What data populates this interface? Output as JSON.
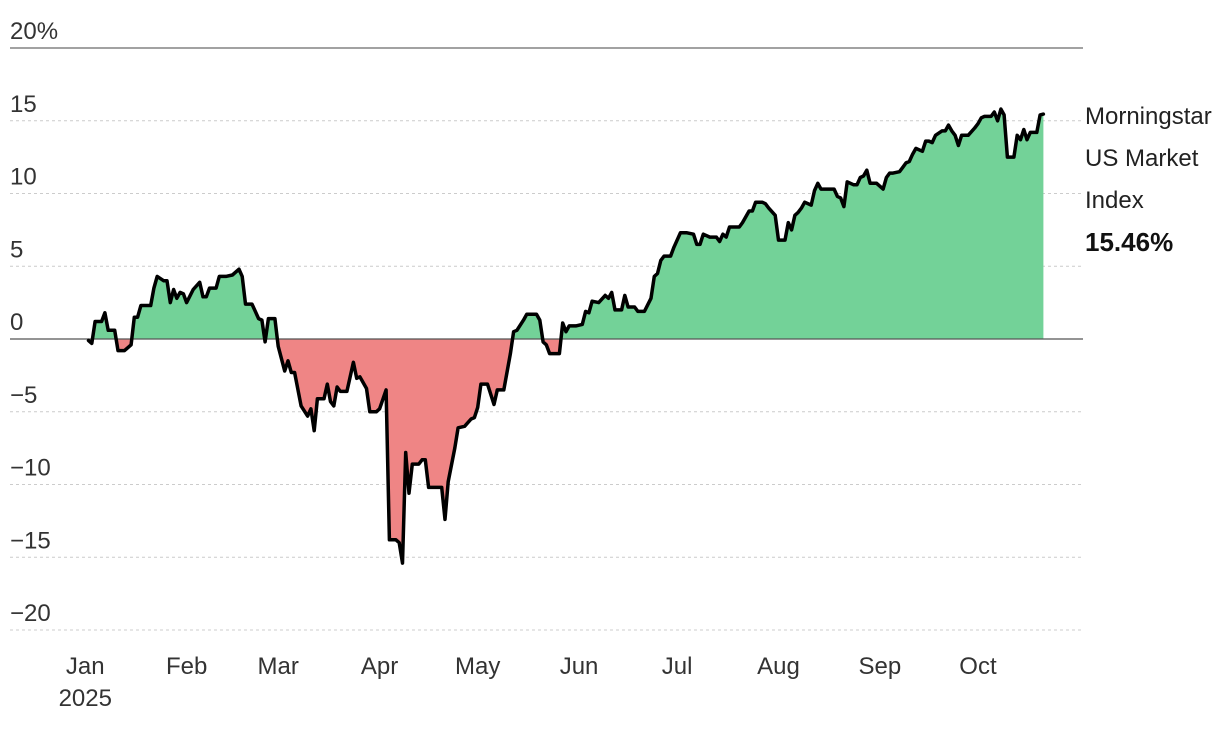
{
  "chart_data": {
    "type": "area",
    "title": "",
    "xlabel": "",
    "ylabel": "",
    "ylim": [
      -20,
      20
    ],
    "y_ticks": [
      {
        "value": 20,
        "label": "20%"
      },
      {
        "value": 15,
        "label": "15"
      },
      {
        "value": 10,
        "label": "10"
      },
      {
        "value": 5,
        "label": "5"
      },
      {
        "value": 0,
        "label": "0"
      },
      {
        "value": -5,
        "label": "−5"
      },
      {
        "value": -10,
        "label": "−10"
      },
      {
        "value": -15,
        "label": "−15"
      },
      {
        "value": -20,
        "label": "−20"
      }
    ],
    "x_ticks": [
      {
        "date": "2025-01-01",
        "label": "Jan",
        "sublabel": "2025"
      },
      {
        "date": "2025-02-01",
        "label": "Feb"
      },
      {
        "date": "2025-03-01",
        "label": "Mar"
      },
      {
        "date": "2025-04-01",
        "label": "Apr"
      },
      {
        "date": "2025-05-01",
        "label": "May"
      },
      {
        "date": "2025-06-01",
        "label": "Jun"
      },
      {
        "date": "2025-07-01",
        "label": "Jul"
      },
      {
        "date": "2025-08-01",
        "label": "Aug"
      },
      {
        "date": "2025-09-01",
        "label": "Sep"
      },
      {
        "date": "2025-10-01",
        "label": "Oct"
      }
    ],
    "xlim": [
      "2024-12-31",
      "2025-10-27"
    ],
    "grid": true,
    "colors": {
      "positive": "#73d298",
      "negative": "#ef8585",
      "line": "#000000",
      "zero": "#555555",
      "grid": "#cccccc"
    },
    "series": [
      {
        "name": "Morningstar US Market Index",
        "label_lines": [
          "Morningstar",
          "US Market",
          "Index"
        ],
        "last_value_label": "15.46%",
        "points": [
          [
            "2025-01-02",
            -0.1
          ],
          [
            "2025-01-03",
            -0.3
          ],
          [
            "2025-01-04",
            1.2
          ],
          [
            "2025-01-06",
            1.2
          ],
          [
            "2025-01-07",
            1.8
          ],
          [
            "2025-01-08",
            0.6
          ],
          [
            "2025-01-10",
            0.6
          ],
          [
            "2025-01-11",
            -0.8
          ],
          [
            "2025-01-13",
            -0.8
          ],
          [
            "2025-01-15",
            -0.4
          ],
          [
            "2025-01-16",
            1.5
          ],
          [
            "2025-01-17",
            1.5
          ],
          [
            "2025-01-18",
            2.3
          ],
          [
            "2025-01-20",
            2.3
          ],
          [
            "2025-01-21",
            2.3
          ],
          [
            "2025-01-22",
            3.5
          ],
          [
            "2025-01-23",
            4.3
          ],
          [
            "2025-01-25",
            4.0
          ],
          [
            "2025-01-26",
            4.0
          ],
          [
            "2025-01-27",
            2.5
          ],
          [
            "2025-01-28",
            3.4
          ],
          [
            "2025-01-29",
            2.8
          ],
          [
            "2025-01-30",
            3.2
          ],
          [
            "2025-01-31",
            3.1
          ],
          [
            "2025-02-01",
            2.5
          ],
          [
            "2025-02-03",
            3.4
          ],
          [
            "2025-02-05",
            3.9
          ],
          [
            "2025-02-06",
            2.9
          ],
          [
            "2025-02-07",
            2.9
          ],
          [
            "2025-02-08",
            3.5
          ],
          [
            "2025-02-10",
            3.5
          ],
          [
            "2025-02-11",
            4.3
          ],
          [
            "2025-02-13",
            4.3
          ],
          [
            "2025-02-15",
            4.4
          ],
          [
            "2025-02-17",
            4.8
          ],
          [
            "2025-02-18",
            4.3
          ],
          [
            "2025-02-19",
            2.4
          ],
          [
            "2025-02-21",
            2.4
          ],
          [
            "2025-02-23",
            1.4
          ],
          [
            "2025-02-24",
            1.3
          ],
          [
            "2025-02-25",
            -0.2
          ],
          [
            "2025-02-26",
            1.4
          ],
          [
            "2025-02-28",
            1.4
          ],
          [
            "2025-03-01",
            -0.5
          ],
          [
            "2025-03-03",
            -2.2
          ],
          [
            "2025-03-04",
            -1.5
          ],
          [
            "2025-03-05",
            -2.3
          ],
          [
            "2025-03-06",
            -2.3
          ],
          [
            "2025-03-08",
            -4.6
          ],
          [
            "2025-03-10",
            -5.3
          ],
          [
            "2025-03-11",
            -4.8
          ],
          [
            "2025-03-12",
            -6.3
          ],
          [
            "2025-03-13",
            -4.1
          ],
          [
            "2025-03-15",
            -4.1
          ],
          [
            "2025-03-16",
            -3.1
          ],
          [
            "2025-03-17",
            -4.3
          ],
          [
            "2025-03-18",
            -4.6
          ],
          [
            "2025-03-19",
            -3.3
          ],
          [
            "2025-03-20",
            -3.6
          ],
          [
            "2025-03-22",
            -3.6
          ],
          [
            "2025-03-24",
            -1.6
          ],
          [
            "2025-03-25",
            -2.7
          ],
          [
            "2025-03-26",
            -2.6
          ],
          [
            "2025-03-28",
            -3.4
          ],
          [
            "2025-03-29",
            -5.0
          ],
          [
            "2025-03-31",
            -5.0
          ],
          [
            "2025-04-01",
            -4.8
          ],
          [
            "2025-04-03",
            -3.5
          ],
          [
            "2025-04-04",
            -13.8
          ],
          [
            "2025-04-06",
            -13.8
          ],
          [
            "2025-04-07",
            -14.0
          ],
          [
            "2025-04-08",
            -15.4
          ],
          [
            "2025-04-09",
            -7.8
          ],
          [
            "2025-04-10",
            -10.6
          ],
          [
            "2025-04-11",
            -8.6
          ],
          [
            "2025-04-13",
            -8.6
          ],
          [
            "2025-04-14",
            -8.3
          ],
          [
            "2025-04-15",
            -8.3
          ],
          [
            "2025-04-16",
            -10.2
          ],
          [
            "2025-04-18",
            -10.2
          ],
          [
            "2025-04-20",
            -10.2
          ],
          [
            "2025-04-21",
            -12.4
          ],
          [
            "2025-04-22",
            -9.8
          ],
          [
            "2025-04-24",
            -7.5
          ],
          [
            "2025-04-25",
            -6.1
          ],
          [
            "2025-04-27",
            -6.0
          ],
          [
            "2025-04-29",
            -5.5
          ],
          [
            "2025-04-30",
            -5.4
          ],
          [
            "2025-05-01",
            -4.7
          ],
          [
            "2025-05-02",
            -3.1
          ],
          [
            "2025-05-04",
            -3.1
          ],
          [
            "2025-05-06",
            -4.5
          ],
          [
            "2025-05-07",
            -3.5
          ],
          [
            "2025-05-09",
            -3.5
          ],
          [
            "2025-05-11",
            -1.0
          ],
          [
            "2025-05-12",
            0.5
          ],
          [
            "2025-05-13",
            0.6
          ],
          [
            "2025-05-15",
            1.3
          ],
          [
            "2025-05-16",
            1.7
          ],
          [
            "2025-05-17",
            1.7
          ],
          [
            "2025-05-19",
            1.7
          ],
          [
            "2025-05-20",
            1.3
          ],
          [
            "2025-05-21",
            -0.2
          ],
          [
            "2025-05-22",
            -0.4
          ],
          [
            "2025-05-23",
            -1.0
          ],
          [
            "2025-05-26",
            -1.0
          ],
          [
            "2025-05-27",
            1.1
          ],
          [
            "2025-05-28",
            0.5
          ],
          [
            "2025-05-29",
            0.9
          ],
          [
            "2025-05-31",
            0.9
          ],
          [
            "2025-06-02",
            1.0
          ],
          [
            "2025-06-03",
            1.9
          ],
          [
            "2025-06-04",
            1.8
          ],
          [
            "2025-06-05",
            2.6
          ],
          [
            "2025-06-07",
            2.5
          ],
          [
            "2025-06-09",
            3.0
          ],
          [
            "2025-06-10",
            2.8
          ],
          [
            "2025-06-11",
            3.2
          ],
          [
            "2025-06-12",
            2.0
          ],
          [
            "2025-06-13",
            2.0
          ],
          [
            "2025-06-14",
            2.0
          ],
          [
            "2025-06-15",
            3.0
          ],
          [
            "2025-06-16",
            2.2
          ],
          [
            "2025-06-18",
            2.2
          ],
          [
            "2025-06-19",
            1.9
          ],
          [
            "2025-06-21",
            1.9
          ],
          [
            "2025-06-23",
            2.8
          ],
          [
            "2025-06-24",
            4.3
          ],
          [
            "2025-06-25",
            4.5
          ],
          [
            "2025-06-26",
            5.4
          ],
          [
            "2025-06-27",
            5.7
          ],
          [
            "2025-06-29",
            5.7
          ],
          [
            "2025-06-30",
            6.3
          ],
          [
            "2025-07-02",
            7.3
          ],
          [
            "2025-07-04",
            7.3
          ],
          [
            "2025-07-06",
            7.2
          ],
          [
            "2025-07-07",
            6.5
          ],
          [
            "2025-07-08",
            6.5
          ],
          [
            "2025-07-09",
            7.2
          ],
          [
            "2025-07-11",
            7.0
          ],
          [
            "2025-07-13",
            7.0
          ],
          [
            "2025-07-14",
            6.7
          ],
          [
            "2025-07-15",
            7.2
          ],
          [
            "2025-07-16",
            7.0
          ],
          [
            "2025-07-17",
            7.7
          ],
          [
            "2025-07-18",
            7.7
          ],
          [
            "2025-07-20",
            7.7
          ],
          [
            "2025-07-21",
            8.0
          ],
          [
            "2025-07-23",
            8.8
          ],
          [
            "2025-07-24",
            8.8
          ],
          [
            "2025-07-25",
            9.4
          ],
          [
            "2025-07-27",
            9.4
          ],
          [
            "2025-07-28",
            9.3
          ],
          [
            "2025-07-29",
            9.0
          ],
          [
            "2025-07-31",
            8.5
          ],
          [
            "2025-08-01",
            6.8
          ],
          [
            "2025-08-03",
            6.8
          ],
          [
            "2025-08-04",
            8.0
          ],
          [
            "2025-08-05",
            7.5
          ],
          [
            "2025-08-06",
            8.5
          ],
          [
            "2025-08-07",
            8.7
          ],
          [
            "2025-08-08",
            9.0
          ],
          [
            "2025-08-09",
            9.4
          ],
          [
            "2025-08-11",
            9.2
          ],
          [
            "2025-08-12",
            10.2
          ],
          [
            "2025-08-13",
            10.7
          ],
          [
            "2025-08-14",
            10.3
          ],
          [
            "2025-08-16",
            10.3
          ],
          [
            "2025-08-18",
            10.3
          ],
          [
            "2025-08-19",
            9.8
          ],
          [
            "2025-08-20",
            9.7
          ],
          [
            "2025-08-21",
            9.1
          ],
          [
            "2025-08-22",
            10.8
          ],
          [
            "2025-08-24",
            10.6
          ],
          [
            "2025-08-25",
            10.6
          ],
          [
            "2025-08-26",
            11.1
          ],
          [
            "2025-08-27",
            11.2
          ],
          [
            "2025-08-28",
            11.6
          ],
          [
            "2025-08-29",
            10.7
          ],
          [
            "2025-08-31",
            10.7
          ],
          [
            "2025-09-02",
            10.3
          ],
          [
            "2025-09-03",
            11.1
          ],
          [
            "2025-09-04",
            11.4
          ],
          [
            "2025-09-05",
            11.4
          ],
          [
            "2025-09-07",
            11.5
          ],
          [
            "2025-09-08",
            11.8
          ],
          [
            "2025-09-09",
            12.1
          ],
          [
            "2025-09-10",
            12.2
          ],
          [
            "2025-09-11",
            12.7
          ],
          [
            "2025-09-12",
            13.1
          ],
          [
            "2025-09-14",
            12.9
          ],
          [
            "2025-09-15",
            13.6
          ],
          [
            "2025-09-16",
            13.6
          ],
          [
            "2025-09-17",
            13.5
          ],
          [
            "2025-09-18",
            14.0
          ],
          [
            "2025-09-20",
            14.3
          ],
          [
            "2025-09-21",
            14.3
          ],
          [
            "2025-09-22",
            14.7
          ],
          [
            "2025-09-23",
            14.3
          ],
          [
            "2025-09-24",
            14.0
          ],
          [
            "2025-09-25",
            13.3
          ],
          [
            "2025-09-26",
            14.0
          ],
          [
            "2025-09-28",
            14.0
          ],
          [
            "2025-09-30",
            14.5
          ],
          [
            "2025-10-01",
            14.8
          ],
          [
            "2025-10-02",
            15.2
          ],
          [
            "2025-10-03",
            15.3
          ],
          [
            "2025-10-05",
            15.3
          ],
          [
            "2025-10-06",
            15.6
          ],
          [
            "2025-10-07",
            15.0
          ],
          [
            "2025-10-08",
            15.8
          ],
          [
            "2025-10-09",
            15.4
          ],
          [
            "2025-10-10",
            12.5
          ],
          [
            "2025-10-12",
            12.5
          ],
          [
            "2025-10-13",
            14.0
          ],
          [
            "2025-10-14",
            13.7
          ],
          [
            "2025-10-15",
            14.4
          ],
          [
            "2025-10-16",
            13.7
          ],
          [
            "2025-10-17",
            14.2
          ],
          [
            "2025-10-19",
            14.2
          ],
          [
            "2025-10-20",
            15.4
          ],
          [
            "2025-10-21",
            15.46
          ]
        ]
      }
    ]
  }
}
